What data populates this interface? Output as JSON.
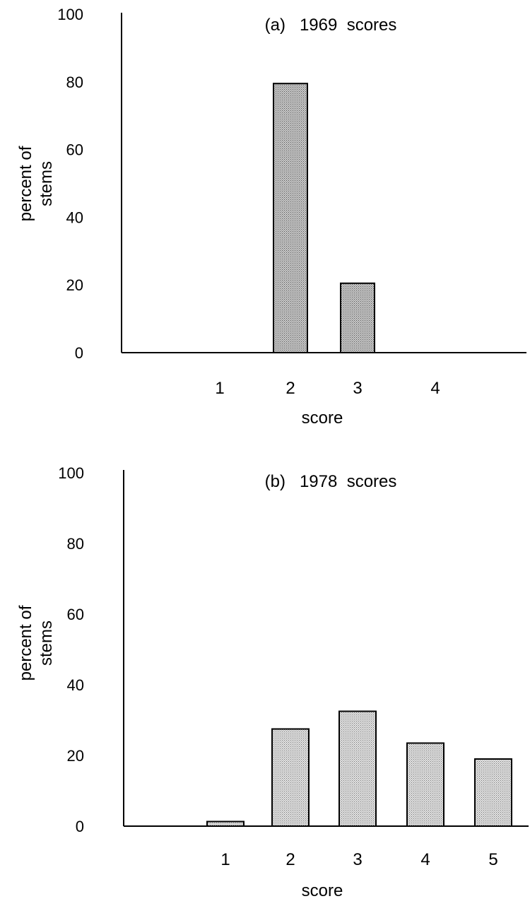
{
  "chart_data": [
    {
      "type": "bar",
      "title": "(a)   1969  scores",
      "xlabel": "score",
      "ylabel_lines": [
        "percent of",
        "stems"
      ],
      "ylim": [
        0,
        100
      ],
      "yticks": [
        "0",
        "20",
        "40",
        "60",
        "80",
        "100"
      ],
      "x_tick_labels": [
        "1",
        "2",
        "3",
        "4"
      ],
      "categories": [
        "1",
        "2",
        "3",
        "4"
      ],
      "values": [
        0,
        79.5,
        20.5,
        0
      ],
      "bar_fill": "#b5b5b5",
      "grid": false
    },
    {
      "type": "bar",
      "title": "(b)   1978  scores",
      "xlabel": "score",
      "ylabel_lines": [
        "percent of",
        "stems"
      ],
      "ylim": [
        0,
        100
      ],
      "yticks": [
        "0",
        "20",
        "40",
        "60",
        "80",
        "100"
      ],
      "x_tick_labels": [
        "1",
        "2",
        "3",
        "4",
        "5"
      ],
      "categories": [
        "1",
        "2",
        "3",
        "4",
        "5"
      ],
      "values": [
        1.3,
        27.5,
        32.5,
        23.5,
        19
      ],
      "bar_fill": "#d4d4d4",
      "grid": false
    }
  ]
}
